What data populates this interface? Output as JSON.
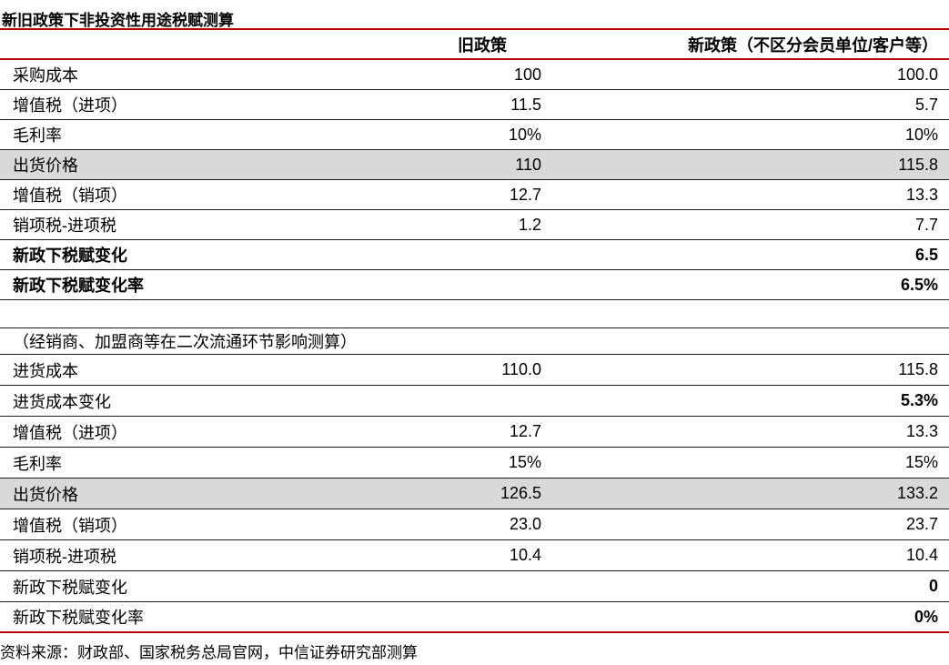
{
  "title": "新旧政策下非投资性用途税赋测算",
  "header": {
    "label": "",
    "old": "旧政策",
    "new": "新政策（不区分会员单位/客户等）"
  },
  "sections": [
    {
      "rows": [
        {
          "label": "采购成本",
          "old": "100",
          "new": "100.0",
          "highlight": false,
          "bold_label": false,
          "bold_value": false
        },
        {
          "label": "增值税（进项）",
          "old": "11.5",
          "new": "5.7",
          "highlight": false,
          "bold_label": false,
          "bold_value": false
        },
        {
          "label": "毛利率",
          "old": "10%",
          "new": "10%",
          "highlight": false,
          "bold_label": false,
          "bold_value": false
        },
        {
          "label": "出货价格",
          "old": "110",
          "new": "115.8",
          "highlight": true,
          "bold_label": false,
          "bold_value": false
        },
        {
          "label": "增值税（销项）",
          "old": "12.7",
          "new": "13.3",
          "highlight": false,
          "bold_label": false,
          "bold_value": false
        },
        {
          "label": "销项税-进项税",
          "old": "1.2",
          "new": "7.7",
          "highlight": false,
          "bold_label": false,
          "bold_value": false
        },
        {
          "label": "新政下税赋变化",
          "old": "",
          "new": "6.5",
          "highlight": false,
          "bold_label": true,
          "bold_value": true
        },
        {
          "label": "新政下税赋变化率",
          "old": "",
          "new": "6.5%",
          "highlight": false,
          "bold_label": true,
          "bold_value": true
        }
      ]
    },
    {
      "caption": "（经销商、加盟商等在二次流通环节影响测算）",
      "rows": [
        {
          "label": "进货成本",
          "old": "110.0",
          "new": "115.8",
          "highlight": false,
          "bold_label": false,
          "bold_value": false
        },
        {
          "label": "进货成本变化",
          "old": "",
          "new": "5.3%",
          "highlight": false,
          "bold_label": false,
          "bold_value": true
        },
        {
          "label": "增值税（进项）",
          "old": "12.7",
          "new": "13.3",
          "highlight": false,
          "bold_label": false,
          "bold_value": false
        },
        {
          "label": "毛利率",
          "old": "15%",
          "new": "15%",
          "highlight": false,
          "bold_label": false,
          "bold_value": false
        },
        {
          "label": "出货价格",
          "old": "126.5",
          "new": "133.2",
          "highlight": true,
          "bold_label": false,
          "bold_value": false
        },
        {
          "label": "增值税（销项）",
          "old": "23.0",
          "new": "23.7",
          "highlight": false,
          "bold_label": false,
          "bold_value": false
        },
        {
          "label": "销项税-进项税",
          "old": "10.4",
          "new": "10.4",
          "highlight": false,
          "bold_label": false,
          "bold_value": false
        },
        {
          "label": "新政下税赋变化",
          "old": "",
          "new": "0",
          "highlight": false,
          "bold_label": false,
          "bold_value": true
        },
        {
          "label": "新政下税赋变化率",
          "old": "",
          "new": "0%",
          "highlight": false,
          "bold_label": false,
          "bold_value": true
        }
      ]
    }
  ],
  "source": "资料来源：财政部、国家税务总局官网，中信证券研究部测算",
  "colors": {
    "line_red": "#B00000",
    "row_highlight": "#D9D9D9",
    "separator_black": "#1a1a1a",
    "text": "#000000"
  }
}
